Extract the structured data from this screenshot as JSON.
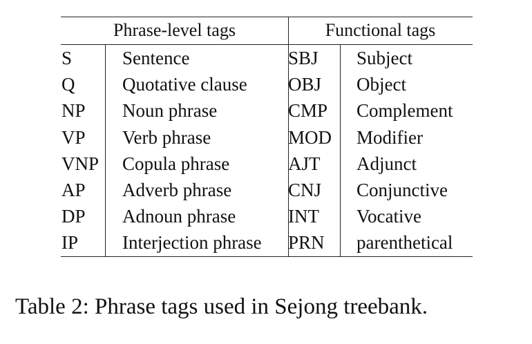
{
  "table": {
    "header": {
      "phrase_level": "Phrase-level tags",
      "functional": "Functional tags"
    },
    "rows": [
      {
        "tag": "S",
        "phrase": "Sentence",
        "ftag": "SBJ",
        "function": "Subject"
      },
      {
        "tag": "Q",
        "phrase": "Quotative clause",
        "ftag": "OBJ",
        "function": "Object"
      },
      {
        "tag": "NP",
        "phrase": "Noun phrase",
        "ftag": "CMP",
        "function": "Complement"
      },
      {
        "tag": "VP",
        "phrase": "Verb phrase",
        "ftag": "MOD",
        "function": "Modifier"
      },
      {
        "tag": "VNP",
        "phrase": "Copula phrase",
        "ftag": "AJT",
        "function": "Adjunct"
      },
      {
        "tag": "AP",
        "phrase": "Adverb phrase",
        "ftag": "CNJ",
        "function": "Conjunctive"
      },
      {
        "tag": "DP",
        "phrase": "Adnoun phrase",
        "ftag": "INT",
        "function": "Vocative"
      },
      {
        "tag": "IP",
        "phrase": "Interjection phrase",
        "ftag": "PRN",
        "function": "parenthetical"
      }
    ]
  },
  "caption": "Table 2: Phrase tags used in Sejong treebank."
}
